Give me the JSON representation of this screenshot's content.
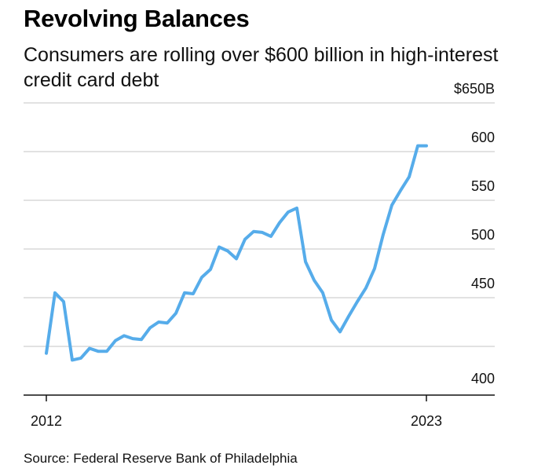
{
  "title": "Revolving Balances",
  "subtitle": "Consumers are rolling over $600 billion in high-interest credit card debt",
  "source": "Source: Federal Reserve Bank of Philadelphia",
  "chart_data": {
    "type": "line",
    "title": "Revolving Balances",
    "subtitle": "Consumers are rolling over $600 billion in high-interest credit card debt",
    "xlabel": "",
    "ylabel": "",
    "x_ticks": [
      "2012",
      "2023"
    ],
    "y_ticks": [
      {
        "value": 400,
        "label": "400"
      },
      {
        "value": 450,
        "label": "450"
      },
      {
        "value": 500,
        "label": "500"
      },
      {
        "value": 550,
        "label": "550"
      },
      {
        "value": 600,
        "label": "600"
      },
      {
        "value": 650,
        "label": "$650B"
      }
    ],
    "ylim": [
      385,
      650
    ],
    "xlim": [
      2012.0,
      2023.0
    ],
    "y_axis_position": "right",
    "grid": true,
    "line_color": "#56acea",
    "grid_color": "#d9d9d9",
    "series": [
      {
        "x": [
          2012.0,
          2012.25,
          2012.5,
          2012.75,
          2013.0,
          2013.25,
          2013.5,
          2013.75,
          2014.0,
          2014.25,
          2014.5,
          2014.75,
          2015.0,
          2015.25,
          2015.5,
          2015.75,
          2016.0,
          2016.25,
          2016.5,
          2016.75,
          2017.0,
          2017.25,
          2017.5,
          2017.75,
          2018.0,
          2018.25,
          2018.5,
          2018.75,
          2019.0,
          2019.25,
          2019.5,
          2019.75,
          2020.0,
          2020.25,
          2020.5,
          2020.75,
          2021.0,
          2021.25,
          2021.5,
          2021.75,
          2022.0,
          2022.25,
          2022.5,
          2022.75,
          2023.0
        ],
        "values": [
          393,
          455,
          446,
          386,
          388,
          398,
          395,
          395,
          406,
          411,
          408,
          407,
          419,
          425,
          424,
          434,
          455,
          454,
          471,
          479,
          502,
          498,
          490,
          510,
          518,
          517,
          513,
          527,
          538,
          542,
          487,
          468,
          455,
          427,
          415,
          431,
          446,
          460,
          480,
          515,
          545,
          560,
          574,
          606,
          606
        ],
        "note_last": "2023 point"
      }
    ]
  }
}
